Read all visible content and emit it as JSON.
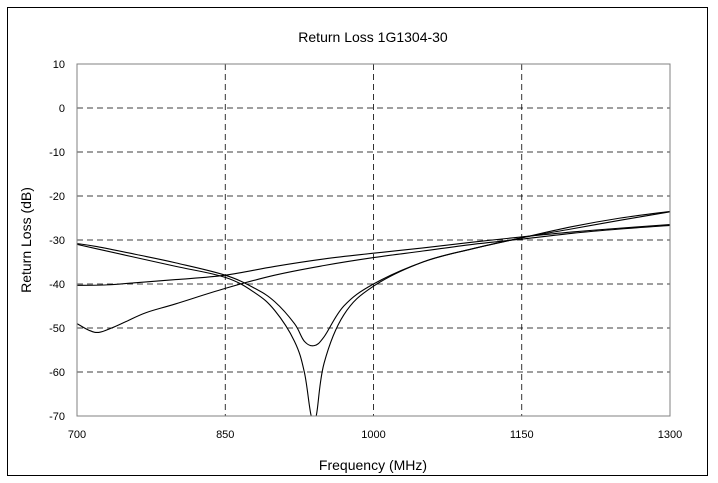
{
  "chart_data": {
    "type": "line",
    "title": "Return Loss 1G1304-30",
    "xlabel": "Frequency (MHz)",
    "ylabel": "Return Loss (dB)",
    "xlim": [
      700,
      1300
    ],
    "ylim": [
      -70,
      10
    ],
    "xticks": [
      "700",
      "850",
      "1000",
      "1150",
      "1300"
    ],
    "yticks": [
      "10",
      "0",
      "-10",
      "-20",
      "-30",
      "-40",
      "-50",
      "-60",
      "-70"
    ],
    "grid": true,
    "series": [
      {
        "x": [
          700,
          720,
          760,
          800,
          850,
          880,
          900,
          920,
          930,
          940,
          950,
          970,
          1000,
          1050,
          1100,
          1150,
          1200,
          1250,
          1300
        ],
        "y": [
          -30.8,
          -31.5,
          -33.3,
          -35.2,
          -38,
          -41,
          -44,
          -49,
          -53,
          -54,
          -52,
          -45,
          -40,
          -35,
          -32,
          -29.5,
          -27,
          -25,
          -23.5
        ]
      },
      {
        "x": [
          700,
          720,
          760,
          800,
          850,
          880,
          900,
          920,
          930,
          937,
          942,
          950,
          970,
          1000,
          1050,
          1100,
          1150,
          1200,
          1250,
          1300
        ],
        "y": [
          -31,
          -32,
          -34,
          -36,
          -38.5,
          -42,
          -46,
          -53,
          -60,
          -70,
          -70,
          -58,
          -47,
          -40.5,
          -35,
          -32,
          -29.5,
          -27.5,
          -25.5,
          -23.6
        ]
      },
      {
        "x": [
          700,
          730,
          760,
          800,
          850,
          900,
          950,
          1000,
          1050,
          1100,
          1150,
          1200,
          1250,
          1300
        ],
        "y": [
          -40.3,
          -40.2,
          -39.7,
          -39,
          -38,
          -36,
          -34.3,
          -33,
          -31.8,
          -30.5,
          -29.3,
          -28.2,
          -27.3,
          -26.5
        ]
      },
      {
        "x": [
          700,
          712,
          722,
          735,
          750,
          770,
          800,
          850,
          900,
          950,
          1000,
          1050,
          1100,
          1150,
          1200,
          1250,
          1300
        ],
        "y": [
          -49,
          -50.5,
          -51,
          -50,
          -48.5,
          -46.5,
          -44.5,
          -41,
          -38,
          -35.8,
          -34,
          -32.5,
          -31,
          -29.8,
          -28.5,
          -27.5,
          -26.7
        ]
      }
    ]
  }
}
